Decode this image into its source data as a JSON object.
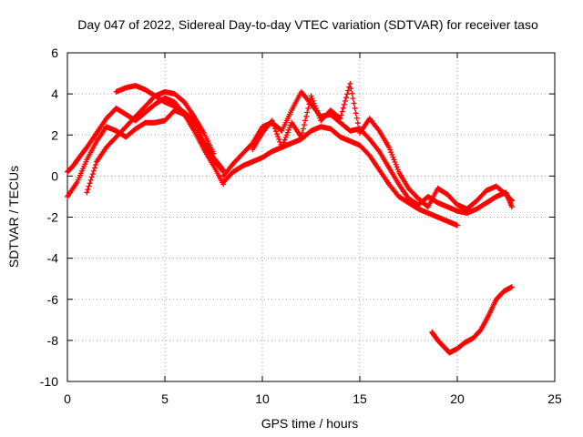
{
  "chart_data": {
    "type": "scatter",
    "title": "Day 047 of 2022, Sidereal Day-to-day VTEC variation (SDTVAR) for receiver taso",
    "xlabel": "GPS time / hours",
    "ylabel": "SDTVAR / TECUs",
    "xlim": [
      0,
      25
    ],
    "ylim": [
      -10,
      6
    ],
    "xticks": [
      0,
      5,
      10,
      15,
      20,
      25
    ],
    "yticks": [
      -10,
      -8,
      -6,
      -4,
      -2,
      0,
      2,
      4,
      6
    ],
    "grid": true,
    "marker": "+",
    "color": "#ff0000",
    "series": [
      {
        "name": "track-a",
        "x": [
          0.0,
          0.3,
          0.6,
          1.0,
          1.5,
          2.0,
          2.5,
          3.0,
          3.5,
          4.0,
          4.5,
          5.0,
          5.5,
          6.0,
          6.5,
          7.0,
          7.5,
          8.0
        ],
        "y": [
          0.2,
          0.5,
          0.9,
          1.4,
          2.1,
          2.8,
          3.3,
          3.0,
          2.7,
          3.1,
          3.5,
          3.8,
          3.6,
          3.0,
          2.2,
          1.3,
          0.5,
          -0.4
        ]
      },
      {
        "name": "track-b",
        "x": [
          0.0,
          0.5,
          1.0,
          1.5,
          2.0,
          2.5,
          3.0,
          3.5,
          4.0,
          4.5,
          5.0,
          5.5,
          6.0,
          6.5,
          7.0,
          7.5,
          8.0
        ],
        "y": [
          -1.0,
          -0.3,
          0.8,
          1.7,
          2.4,
          2.2,
          1.9,
          2.3,
          2.6,
          2.6,
          2.7,
          3.2,
          3.0,
          2.5,
          1.5,
          0.8,
          0.2
        ]
      },
      {
        "name": "track-c",
        "x": [
          1.0,
          1.5,
          2.0,
          2.5,
          3.0,
          3.5,
          4.0,
          4.5,
          5.0,
          5.5,
          6.0,
          6.5,
          7.0,
          7.5
        ],
        "y": [
          -0.8,
          0.7,
          1.4,
          1.9,
          2.4,
          2.9,
          3.4,
          3.9,
          4.1,
          4.0,
          3.6,
          2.9,
          2.1,
          1.1
        ]
      },
      {
        "name": "track-d",
        "x": [
          2.5,
          3.0,
          3.5,
          4.0,
          4.5,
          5.0,
          5.5,
          6.0,
          6.5,
          7.0,
          7.5,
          8.0
        ],
        "y": [
          4.1,
          4.3,
          4.4,
          4.2,
          3.9,
          3.6,
          3.4,
          3.1,
          2.7,
          1.7,
          0.9,
          0.3
        ]
      },
      {
        "name": "track-e",
        "x": [
          8.0,
          8.5,
          9.0,
          9.5,
          10.0,
          10.5,
          11.0,
          11.5,
          12.0,
          12.5,
          13.0,
          13.5,
          14.0,
          14.5,
          15.0,
          15.5,
          16.0,
          16.5,
          17.0,
          17.5,
          18.0,
          18.5,
          19.0,
          19.5,
          20.0
        ],
        "y": [
          -0.3,
          0.2,
          0.5,
          0.7,
          0.9,
          1.2,
          1.4,
          1.6,
          1.8,
          2.2,
          2.4,
          2.3,
          1.9,
          1.7,
          1.5,
          1.0,
          0.3,
          -0.4,
          -1.0,
          -1.3,
          -1.6,
          -1.8,
          -2.0,
          -2.2,
          -2.4
        ]
      },
      {
        "name": "track-f",
        "x": [
          8.0,
          8.5,
          9.0,
          9.5,
          10.0,
          10.5,
          11.0,
          11.5,
          12.0,
          12.5,
          13.0,
          13.5,
          14.0,
          14.5,
          15.0,
          15.5,
          16.0,
          16.5,
          17.0,
          17.5,
          18.0,
          18.5,
          19.0,
          19.5,
          20.0,
          20.5,
          21.0,
          21.5,
          22.0,
          22.5,
          22.8
        ],
        "y": [
          0.0,
          0.6,
          1.1,
          1.6,
          2.4,
          2.6,
          2.2,
          3.2,
          4.1,
          3.5,
          2.9,
          3.0,
          2.6,
          2.2,
          2.3,
          1.8,
          1.2,
          0.4,
          -0.4,
          -1.1,
          -1.4,
          -1.0,
          -1.3,
          -1.5,
          -1.7,
          -1.8,
          -1.6,
          -1.3,
          -1.0,
          -0.8,
          -1.5
        ]
      },
      {
        "name": "track-g",
        "x": [
          9.5,
          10.0,
          10.5,
          11.0,
          11.5,
          12.0,
          12.5,
          13.0,
          13.5,
          14.0,
          14.5,
          15.0,
          15.5,
          16.0,
          16.5,
          17.0,
          17.5,
          18.0,
          18.5,
          19.0,
          19.5,
          20.0,
          20.5,
          21.0,
          21.5,
          22.0,
          22.5,
          22.8
        ],
        "y": [
          1.3,
          2.1,
          2.7,
          1.4,
          2.6,
          1.9,
          3.9,
          2.7,
          3.2,
          2.8,
          4.5,
          2.1,
          2.8,
          2.2,
          1.4,
          0.2,
          -0.6,
          -1.1,
          -1.5,
          -0.6,
          -0.9,
          -1.4,
          -1.6,
          -1.2,
          -0.7,
          -0.5,
          -0.9,
          -1.2
        ]
      },
      {
        "name": "track-h",
        "x": [
          18.7,
          19.0,
          19.3,
          19.6,
          20.0,
          20.4,
          20.8,
          21.2,
          21.6,
          22.0,
          22.4,
          22.8
        ],
        "y": [
          -7.6,
          -8.0,
          -8.3,
          -8.6,
          -8.4,
          -8.1,
          -7.9,
          -7.5,
          -6.8,
          -6.0,
          -5.6,
          -5.4
        ]
      }
    ]
  }
}
